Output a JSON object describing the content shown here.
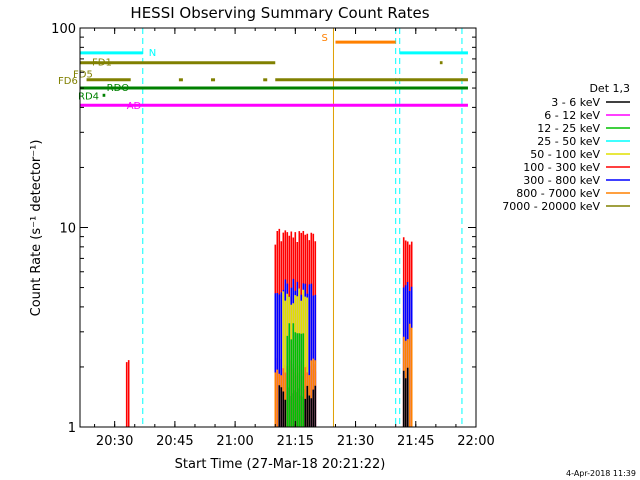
{
  "chart_data": {
    "type": "line",
    "title": "HESSI Observing Summary Count Rates",
    "xlabel": "Start Time (27-Mar-18 20:21:22)",
    "ylabel": "Count Rate (s⁻¹ detector⁻¹)",
    "y_scale": "log",
    "ylim": [
      1,
      100
    ],
    "xlim": [
      "20:21:22",
      "22:00:00"
    ],
    "x_ticks": [
      "20:30",
      "20:45",
      "21:00",
      "21:15",
      "21:30",
      "21:45",
      "22:00"
    ],
    "y_ticks": [
      "1",
      "10",
      "100"
    ],
    "legend": {
      "title": "Det 1,3",
      "placement": "right",
      "entries": [
        {
          "label": "3 - 6 keV",
          "color": "#000000"
        },
        {
          "label": "6 - 12 keV",
          "color": "#ff00ff"
        },
        {
          "label": "12 - 25 keV",
          "color": "#00c000"
        },
        {
          "label": "25 - 50 keV",
          "color": "#00ffff"
        },
        {
          "label": "50 - 100 keV",
          "color": "#e0e000"
        },
        {
          "label": "100 - 300 keV",
          "color": "#ff0000"
        },
        {
          "label": "300 - 800 keV",
          "color": "#0000ff"
        },
        {
          "label": "800 - 7000 keV",
          "color": "#ff8000"
        },
        {
          "label": "7000 - 20000 keV",
          "color": "#808000"
        }
      ]
    },
    "flag_bars": [
      {
        "label": "N",
        "color": "#00ffff",
        "y": 75,
        "segments": [
          [
            "20:21:22",
            "20:37:00"
          ],
          [
            "21:41:00",
            "21:58:00"
          ]
        ]
      },
      {
        "label": "S",
        "color": "#ff8000",
        "y": 85,
        "segments": [
          [
            "21:25:00",
            "21:40:00"
          ]
        ]
      },
      {
        "label": "FD1",
        "color": "#808000",
        "y": 67,
        "segments": [
          [
            "20:21:22",
            "21:10:00"
          ],
          [
            "21:51:00",
            "21:51:40"
          ]
        ]
      },
      {
        "label": "FD5",
        "color": "#808000",
        "y": 60,
        "segments": []
      },
      {
        "label": "FD6",
        "color": "#808000",
        "y": 55,
        "segments": [
          [
            "20:23:00",
            "20:34:00"
          ],
          [
            "20:46:00",
            "20:47:00"
          ],
          [
            "20:54:00",
            "20:55:00"
          ],
          [
            "21:07:00",
            "21:08:00"
          ],
          [
            "21:10:00",
            "21:58:00"
          ]
        ]
      },
      {
        "label": "RDO",
        "color": "#008000",
        "y": 50,
        "segments": [
          [
            "20:21:22",
            "21:58:00"
          ]
        ]
      },
      {
        "label": "RD4",
        "color": "#008000",
        "y": 46,
        "segments": [
          [
            "20:27:00",
            "20:27:40"
          ]
        ]
      },
      {
        "label": "AD",
        "color": "#ff00ff",
        "y": 41,
        "segments": [
          [
            "20:21:22",
            "21:58:00"
          ]
        ]
      }
    ],
    "vertical_markers": [
      {
        "x": "20:21:22",
        "color": "#00ffff",
        "style": "solid"
      },
      {
        "x": "20:37:00",
        "color": "#00ffff",
        "style": "dashed"
      },
      {
        "x": "21:24:30",
        "color": "#e0a000",
        "style": "solid"
      },
      {
        "x": "21:40:00",
        "color": "#00ffff",
        "style": "dashed"
      },
      {
        "x": "21:41:00",
        "color": "#00ffff",
        "style": "dashed"
      },
      {
        "x": "21:56:30",
        "color": "#00ffff",
        "style": "dashed"
      }
    ],
    "series": [
      {
        "name": "6 - 12 keV",
        "color": "#ff00ff",
        "intervals": [
          [
            [
              "21:10:00",
              "21:20:00"
            ],
            2.0
          ]
        ]
      },
      {
        "name": "100 - 300 keV",
        "color": "#ff0000",
        "intervals": [
          [
            [
              "21:10:00",
              "21:20:00"
            ],
            9.0
          ],
          [
            [
              "21:42:00",
              "21:44:00"
            ],
            9.0
          ],
          [
            [
              "20:33:00",
              "20:33:40"
            ],
            2.0
          ]
        ]
      },
      {
        "name": "300 - 800 keV",
        "color": "#0000ff",
        "intervals": [
          [
            [
              "21:10:00",
              "21:20:00"
            ],
            5.0
          ],
          [
            [
              "21:42:00",
              "21:44:00"
            ],
            5.0
          ]
        ]
      },
      {
        "name": "50 - 100 keV",
        "color": "#e0e000",
        "intervals": [
          [
            [
              "21:12:00",
              "21:18:00"
            ],
            4.5
          ]
        ]
      },
      {
        "name": "800 - 7000 keV",
        "color": "#ff8000",
        "intervals": [
          [
            [
              "21:10:00",
              "21:20:00"
            ],
            2.0
          ],
          [
            [
              "21:42:00",
              "21:44:00"
            ],
            3.0
          ]
        ]
      },
      {
        "name": "3 - 6 keV",
        "color": "#000000",
        "intervals": [
          [
            [
              "21:11:00",
              "21:20:00"
            ],
            1.5
          ],
          [
            [
              "21:42:00",
              "21:43:00"
            ],
            1.8
          ]
        ]
      },
      {
        "name": "12 - 25 keV",
        "color": "#00c000",
        "intervals": [
          [
            [
              "21:13:00",
              "21:17:00"
            ],
            3.0
          ]
        ]
      }
    ]
  },
  "timestamp": "4-Apr-2018 11:39"
}
